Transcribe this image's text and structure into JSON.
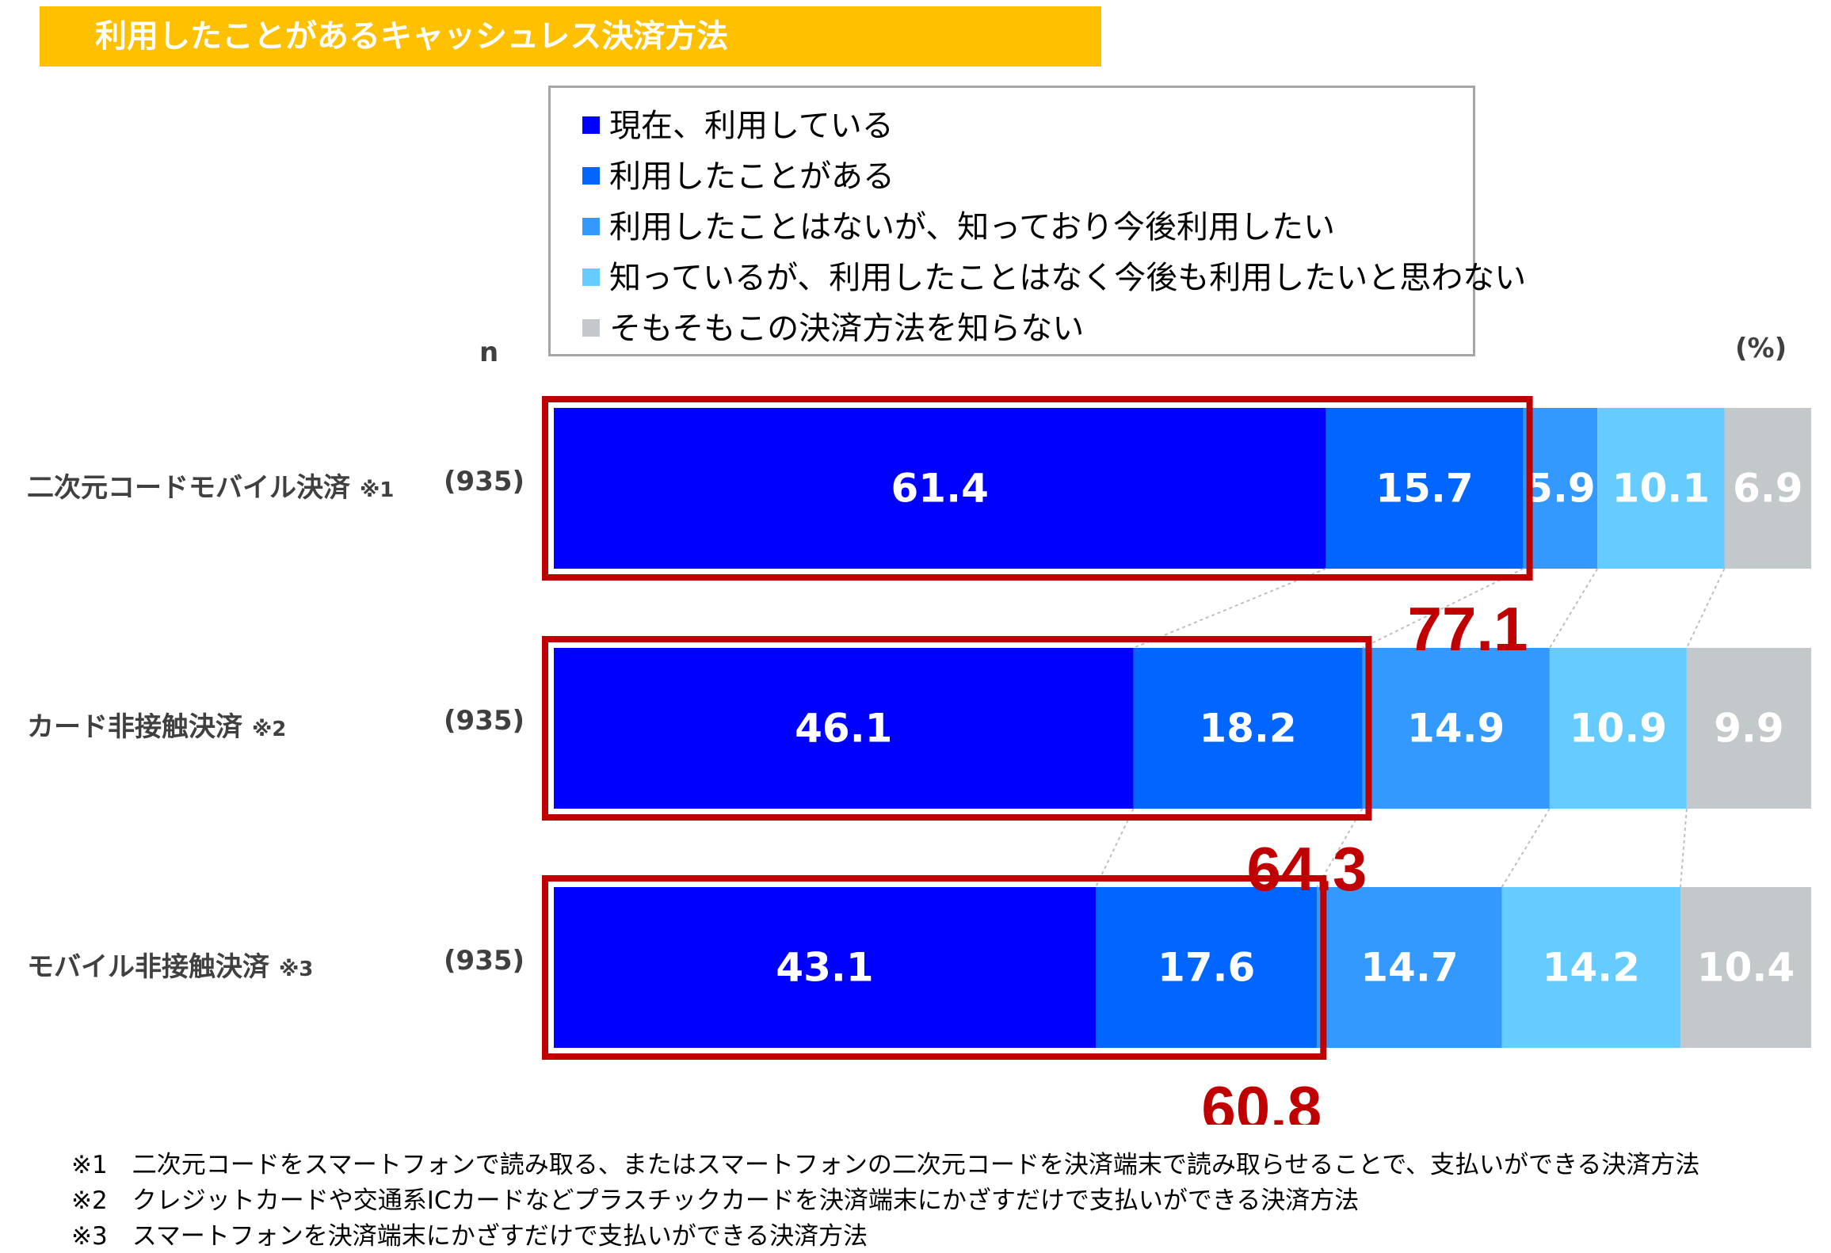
{
  "title": "利用したことがあるキャッシュレス決済方法",
  "n_header": "n",
  "unit": "(%)",
  "legend": [
    {
      "label": "現在、利用している",
      "color": "#0000FF"
    },
    {
      "label": "利用したことがある",
      "color": "#0066FF"
    },
    {
      "label": "利用したことはないが、知っており今後利用したい",
      "color": "#3399FF"
    },
    {
      "label": "知っているが、利用したことはなく今後も利用したいと思わない",
      "color": "#66CCFF"
    },
    {
      "label": "そもそもこの決済方法を知らない",
      "color": "#C3C8CA"
    }
  ],
  "rows": [
    {
      "label": "二次元コードモバイル決済",
      "note": "※1",
      "n": "(935)"
    },
    {
      "label": "カード非接触決済",
      "note": "※2",
      "n": "(935)"
    },
    {
      "label": "モバイル非接触決済",
      "note": "※3",
      "n": "(935)"
    }
  ],
  "chart_data": {
    "type": "bar",
    "orientation": "horizontal",
    "stacked": true,
    "categories": [
      "二次元コードモバイル決済",
      "カード非接触決済",
      "モバイル非接触決済"
    ],
    "series": [
      {
        "name": "現在、利用している",
        "values": [
          61.4,
          46.1,
          43.1
        ]
      },
      {
        "name": "利用したことがある",
        "values": [
          15.7,
          18.2,
          17.6
        ]
      },
      {
        "name": "利用したことはないが、知っており今後利用したい",
        "values": [
          5.9,
          14.9,
          14.7
        ]
      },
      {
        "name": "知っているが、利用したことはなく今後も利用したいと思わない",
        "values": [
          10.1,
          10.9,
          14.2
        ]
      },
      {
        "name": "そもそもこの決済方法を知らない",
        "values": [
          6.9,
          9.9,
          10.4
        ]
      }
    ],
    "highlight_totals": [
      "77.1",
      "64.3",
      "60.8"
    ],
    "xlim": [
      0,
      100
    ],
    "unit": "(%)",
    "legend_position": "top"
  },
  "footnotes": [
    "※1　二次元コードをスマートフォンで読み取る、またはスマートフォンの二次元コードを決済端末で読み取らせることで、支払いができる決済方法",
    "※2　クレジットカードや交通系ICカードなどプラスチックカードを決済端末にかざすだけで支払いができる決済方法",
    "※3　スマートフォンを決済端末にかざすだけで支払いができる決済方法"
  ]
}
